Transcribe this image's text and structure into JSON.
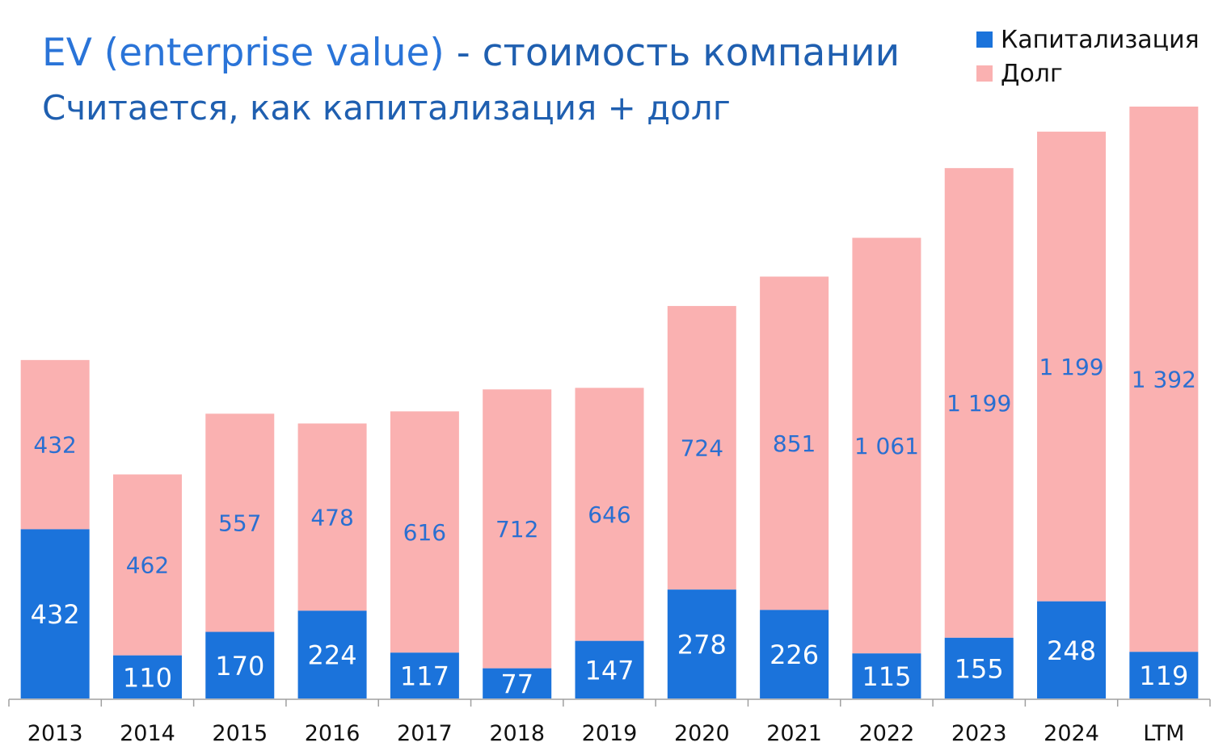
{
  "header": {
    "title_accent": "EV (enterprise value)",
    "title_rest": " - стоимость компании",
    "subtitle": "Считается, как капитализация + долг"
  },
  "colors": {
    "capitalization": "#1b73db",
    "debt": "#fab1b1",
    "debt_label": "#2a6fd1",
    "cap_label": "#ffffff"
  },
  "chart_data": {
    "type": "bar",
    "stacked": true,
    "categories": [
      "2013",
      "2014",
      "2015",
      "2016",
      "2017",
      "2018",
      "2019",
      "2020",
      "2021",
      "2022",
      "2023",
      "2024",
      "LTM"
    ],
    "series": [
      {
        "name": "Капитализация",
        "values": [
          432,
          110,
          170,
          224,
          117,
          77,
          147,
          278,
          226,
          115,
          155,
          248,
          119
        ],
        "labels": [
          "432",
          "110",
          "170",
          "224",
          "117",
          "77",
          "147",
          "278",
          "226",
          "115",
          "155",
          "248",
          "119"
        ]
      },
      {
        "name": "Долг",
        "values": [
          432,
          462,
          557,
          478,
          616,
          712,
          646,
          724,
          851,
          1061,
          1199,
          1199,
          1392
        ],
        "labels": [
          "432",
          "462",
          "557",
          "478",
          "616",
          "712",
          "646",
          "724",
          "851",
          "1 061",
          "1 199",
          "1 199",
          "1 392"
        ]
      }
    ],
    "legend_position": "top-right",
    "grid": false,
    "ylim": [
      0,
      1511
    ]
  }
}
